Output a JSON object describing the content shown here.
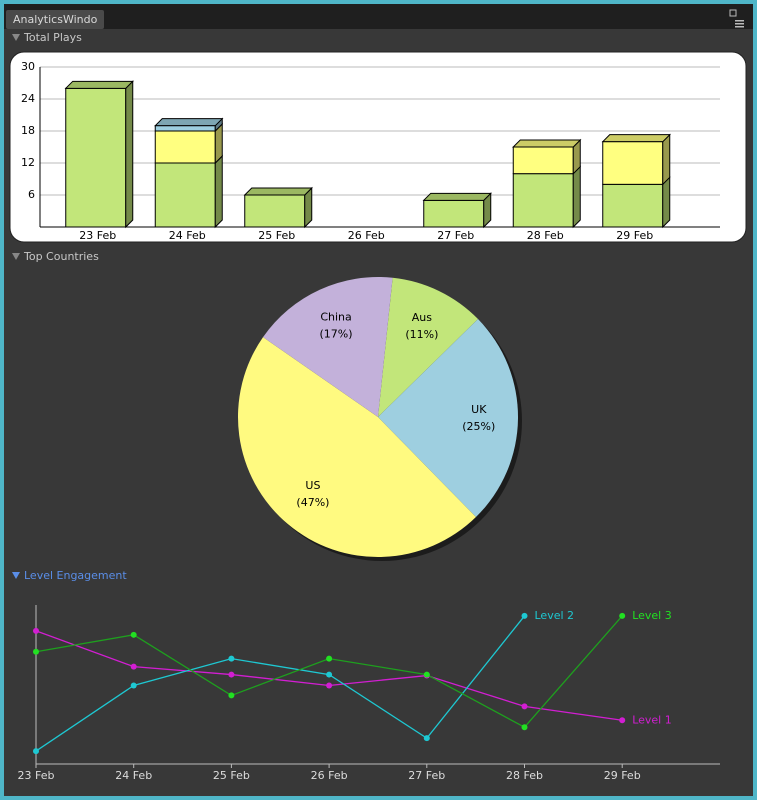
{
  "window": {
    "title": "AnalyticsWindo"
  },
  "sections": [
    "Total Plays",
    "Top Countries",
    "Level Engagement"
  ],
  "chart_data": [
    {
      "type": "bar",
      "stacked": true,
      "grid": true,
      "categories": [
        "23 Feb",
        "24 Feb",
        "25 Feb",
        "26 Feb",
        "27 Feb",
        "28 Feb",
        "29 Feb"
      ],
      "series": [
        {
          "color": "#c2e67a",
          "values": [
            26,
            12,
            6,
            0,
            5,
            10,
            8
          ]
        },
        {
          "color": "#ffff80",
          "values": [
            0,
            6,
            0,
            0,
            0,
            5,
            8
          ]
        },
        {
          "color": "#9ecfe0",
          "values": [
            0,
            1,
            0,
            0,
            0,
            0,
            0
          ]
        }
      ],
      "ylim": [
        0,
        30
      ],
      "yticks": [
        6,
        12,
        18,
        24,
        30
      ]
    },
    {
      "type": "pie",
      "categories": [
        "Aus",
        "UK",
        "US",
        "China"
      ],
      "values": [
        11,
        25,
        47,
        17
      ],
      "value_labels": [
        "(11%)",
        "(25%)",
        "(47%)",
        "(17%)"
      ],
      "colors": [
        "#c2e67a",
        "#9ecfe0",
        "#fffa80",
        "#c3b1da"
      ]
    },
    {
      "type": "line",
      "categories": [
        "23 Feb",
        "24 Feb",
        "25 Feb",
        "26 Feb",
        "27 Feb",
        "28 Feb",
        "29 Feb"
      ],
      "series": [
        {
          "name": "Level 1",
          "color": "#d21ed2",
          "values": [
            134,
            98,
            90,
            79,
            89,
            58,
            44
          ]
        },
        {
          "name": "Level 2",
          "color": "#1ec8d2",
          "values": [
            13,
            79,
            106,
            90,
            26,
            149,
            null
          ]
        },
        {
          "name": "Level 3",
          "color": "#1ea01e",
          "values": [
            113,
            130,
            69,
            106,
            90,
            37,
            149
          ]
        }
      ],
      "ylim": [
        0,
        160
      ]
    }
  ]
}
